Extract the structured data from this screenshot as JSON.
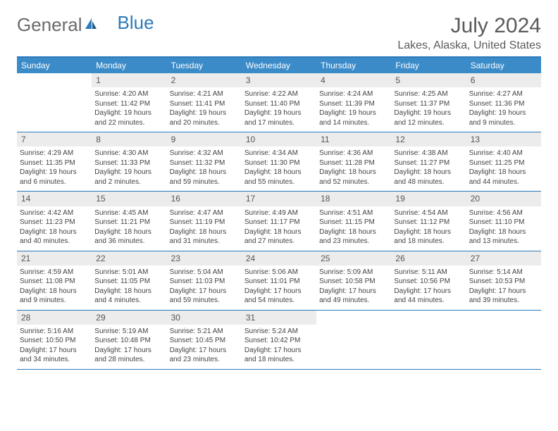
{
  "brand": {
    "general": "General",
    "blue": "Blue"
  },
  "title": "July 2024",
  "location": "Lakes, Alaska, United States",
  "colors": {
    "header_bg": "#3b8bc9",
    "header_text": "#ffffff",
    "rule": "#2b7bbd",
    "daynum_bg": "#ececec",
    "text": "#444444",
    "logo_gray": "#6b6b6b",
    "logo_blue": "#2b7bbd"
  },
  "weekdays": [
    "Sunday",
    "Monday",
    "Tuesday",
    "Wednesday",
    "Thursday",
    "Friday",
    "Saturday"
  ],
  "weeks": [
    [
      {
        "blank": true
      },
      {
        "day": "1",
        "sunrise": "Sunrise: 4:20 AM",
        "sunset": "Sunset: 11:42 PM",
        "daylight": "Daylight: 19 hours and 22 minutes."
      },
      {
        "day": "2",
        "sunrise": "Sunrise: 4:21 AM",
        "sunset": "Sunset: 11:41 PM",
        "daylight": "Daylight: 19 hours and 20 minutes."
      },
      {
        "day": "3",
        "sunrise": "Sunrise: 4:22 AM",
        "sunset": "Sunset: 11:40 PM",
        "daylight": "Daylight: 19 hours and 17 minutes."
      },
      {
        "day": "4",
        "sunrise": "Sunrise: 4:24 AM",
        "sunset": "Sunset: 11:39 PM",
        "daylight": "Daylight: 19 hours and 14 minutes."
      },
      {
        "day": "5",
        "sunrise": "Sunrise: 4:25 AM",
        "sunset": "Sunset: 11:37 PM",
        "daylight": "Daylight: 19 hours and 12 minutes."
      },
      {
        "day": "6",
        "sunrise": "Sunrise: 4:27 AM",
        "sunset": "Sunset: 11:36 PM",
        "daylight": "Daylight: 19 hours and 9 minutes."
      }
    ],
    [
      {
        "day": "7",
        "sunrise": "Sunrise: 4:29 AM",
        "sunset": "Sunset: 11:35 PM",
        "daylight": "Daylight: 19 hours and 6 minutes."
      },
      {
        "day": "8",
        "sunrise": "Sunrise: 4:30 AM",
        "sunset": "Sunset: 11:33 PM",
        "daylight": "Daylight: 19 hours and 2 minutes."
      },
      {
        "day": "9",
        "sunrise": "Sunrise: 4:32 AM",
        "sunset": "Sunset: 11:32 PM",
        "daylight": "Daylight: 18 hours and 59 minutes."
      },
      {
        "day": "10",
        "sunrise": "Sunrise: 4:34 AM",
        "sunset": "Sunset: 11:30 PM",
        "daylight": "Daylight: 18 hours and 55 minutes."
      },
      {
        "day": "11",
        "sunrise": "Sunrise: 4:36 AM",
        "sunset": "Sunset: 11:28 PM",
        "daylight": "Daylight: 18 hours and 52 minutes."
      },
      {
        "day": "12",
        "sunrise": "Sunrise: 4:38 AM",
        "sunset": "Sunset: 11:27 PM",
        "daylight": "Daylight: 18 hours and 48 minutes."
      },
      {
        "day": "13",
        "sunrise": "Sunrise: 4:40 AM",
        "sunset": "Sunset: 11:25 PM",
        "daylight": "Daylight: 18 hours and 44 minutes."
      }
    ],
    [
      {
        "day": "14",
        "sunrise": "Sunrise: 4:42 AM",
        "sunset": "Sunset: 11:23 PM",
        "daylight": "Daylight: 18 hours and 40 minutes."
      },
      {
        "day": "15",
        "sunrise": "Sunrise: 4:45 AM",
        "sunset": "Sunset: 11:21 PM",
        "daylight": "Daylight: 18 hours and 36 minutes."
      },
      {
        "day": "16",
        "sunrise": "Sunrise: 4:47 AM",
        "sunset": "Sunset: 11:19 PM",
        "daylight": "Daylight: 18 hours and 31 minutes."
      },
      {
        "day": "17",
        "sunrise": "Sunrise: 4:49 AM",
        "sunset": "Sunset: 11:17 PM",
        "daylight": "Daylight: 18 hours and 27 minutes."
      },
      {
        "day": "18",
        "sunrise": "Sunrise: 4:51 AM",
        "sunset": "Sunset: 11:15 PM",
        "daylight": "Daylight: 18 hours and 23 minutes."
      },
      {
        "day": "19",
        "sunrise": "Sunrise: 4:54 AM",
        "sunset": "Sunset: 11:12 PM",
        "daylight": "Daylight: 18 hours and 18 minutes."
      },
      {
        "day": "20",
        "sunrise": "Sunrise: 4:56 AM",
        "sunset": "Sunset: 11:10 PM",
        "daylight": "Daylight: 18 hours and 13 minutes."
      }
    ],
    [
      {
        "day": "21",
        "sunrise": "Sunrise: 4:59 AM",
        "sunset": "Sunset: 11:08 PM",
        "daylight": "Daylight: 18 hours and 9 minutes."
      },
      {
        "day": "22",
        "sunrise": "Sunrise: 5:01 AM",
        "sunset": "Sunset: 11:05 PM",
        "daylight": "Daylight: 18 hours and 4 minutes."
      },
      {
        "day": "23",
        "sunrise": "Sunrise: 5:04 AM",
        "sunset": "Sunset: 11:03 PM",
        "daylight": "Daylight: 17 hours and 59 minutes."
      },
      {
        "day": "24",
        "sunrise": "Sunrise: 5:06 AM",
        "sunset": "Sunset: 11:01 PM",
        "daylight": "Daylight: 17 hours and 54 minutes."
      },
      {
        "day": "25",
        "sunrise": "Sunrise: 5:09 AM",
        "sunset": "Sunset: 10:58 PM",
        "daylight": "Daylight: 17 hours and 49 minutes."
      },
      {
        "day": "26",
        "sunrise": "Sunrise: 5:11 AM",
        "sunset": "Sunset: 10:56 PM",
        "daylight": "Daylight: 17 hours and 44 minutes."
      },
      {
        "day": "27",
        "sunrise": "Sunrise: 5:14 AM",
        "sunset": "Sunset: 10:53 PM",
        "daylight": "Daylight: 17 hours and 39 minutes."
      }
    ],
    [
      {
        "day": "28",
        "sunrise": "Sunrise: 5:16 AM",
        "sunset": "Sunset: 10:50 PM",
        "daylight": "Daylight: 17 hours and 34 minutes."
      },
      {
        "day": "29",
        "sunrise": "Sunrise: 5:19 AM",
        "sunset": "Sunset: 10:48 PM",
        "daylight": "Daylight: 17 hours and 28 minutes."
      },
      {
        "day": "30",
        "sunrise": "Sunrise: 5:21 AM",
        "sunset": "Sunset: 10:45 PM",
        "daylight": "Daylight: 17 hours and 23 minutes."
      },
      {
        "day": "31",
        "sunrise": "Sunrise: 5:24 AM",
        "sunset": "Sunset: 10:42 PM",
        "daylight": "Daylight: 17 hours and 18 minutes."
      },
      {
        "blank": true
      },
      {
        "blank": true
      },
      {
        "blank": true
      }
    ]
  ]
}
